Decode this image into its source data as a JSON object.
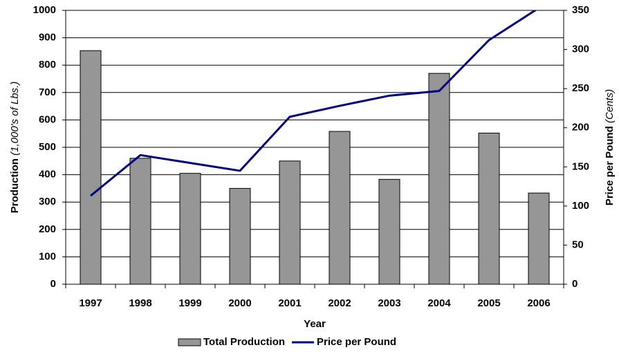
{
  "chart_data": {
    "type": "bar",
    "xlabel": "Year",
    "ylabel": "Production",
    "ylabel_unit": "(1,000's of Lbs.)",
    "y2label": "Price per Pound",
    "y2label_unit": "(Cents)",
    "categories": [
      "1997",
      "1998",
      "1999",
      "2000",
      "2001",
      "2002",
      "2003",
      "2004",
      "2005",
      "2006"
    ],
    "series": [
      {
        "name": "Total Production",
        "type": "bar",
        "color": "#969696",
        "values": [
          853,
          460,
          405,
          350,
          450,
          558,
          383,
          770,
          552,
          333
        ]
      },
      {
        "name": "Price per Pound",
        "type": "line",
        "axis": "y2",
        "color": "#000080",
        "values": [
          113,
          165,
          155,
          145,
          214,
          228,
          241,
          247,
          312,
          353
        ]
      }
    ],
    "ylim": [
      0,
      1000
    ],
    "yticks": [
      0,
      100,
      200,
      300,
      400,
      500,
      600,
      700,
      800,
      900,
      1000
    ],
    "y2lim": [
      0,
      350
    ],
    "y2ticks": [
      0,
      50,
      100,
      150,
      200,
      250,
      300,
      350
    ],
    "grid": true,
    "legend": "bottom"
  }
}
